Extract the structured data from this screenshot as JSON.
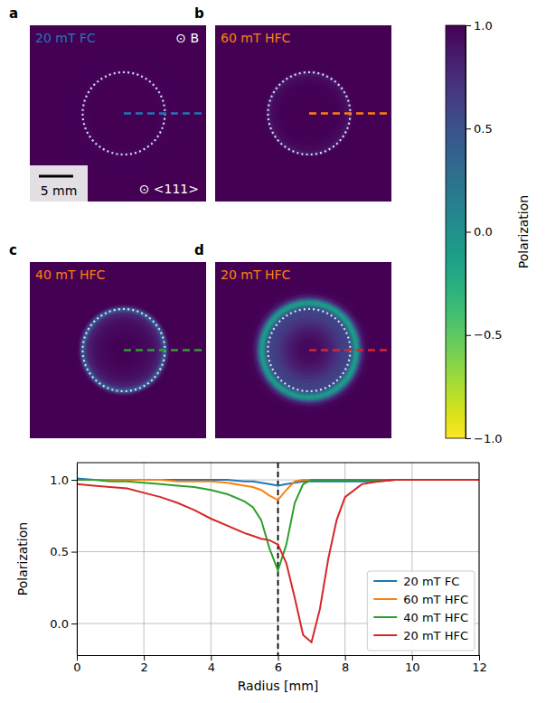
{
  "chart_data": [
    {
      "type": "radial_map",
      "panels": [
        {
          "label": "a",
          "title": "20 mT FC",
          "color": "#1f77b4"
        },
        {
          "label": "b",
          "title": "60 mT HFC",
          "color": "#ff7f0e"
        },
        {
          "label": "c",
          "title": "40 mT HFC",
          "color": "#ff7f0e"
        },
        {
          "label": "d",
          "title": "20 mT HFC",
          "color": "#ff7f0e"
        }
      ],
      "annotations": [
        "⊙ B",
        "⊙ <111>"
      ],
      "scale_bar": {
        "value": 5,
        "label": "5 mm"
      },
      "circle_radius": 6,
      "xlim": [
        -13.7,
        12
      ],
      "ylim": [
        -12.85,
        12.85
      ],
      "tick_labels": false,
      "colorbar": {
        "label": "Polarization",
        "range": [
          -1,
          1
        ],
        "ticks": [
          {
            "value": 1,
            "label": "1.0"
          },
          {
            "value": 0.5,
            "label": "0.5"
          },
          {
            "value": 0,
            "label": "0.0"
          },
          {
            "value": -0.5,
            "label": "−0.5"
          },
          {
            "value": -1,
            "label": "−1.0"
          }
        ]
      }
    },
    {
      "type": "line",
      "xlabel": "Radius [mm]",
      "ylabel": "Polarization",
      "x": [
        0,
        0.5,
        1,
        1.5,
        2,
        2.5,
        3,
        3.5,
        4,
        4.5,
        5,
        5.25,
        5.5,
        5.75,
        6,
        6.25,
        6.5,
        6.75,
        7,
        7.25,
        7.5,
        7.75,
        8,
        8.5,
        9,
        9.5,
        10,
        10.5,
        11,
        11.5,
        12
      ],
      "series": [
        {
          "name": "20 mT FC",
          "color": "#1f77b4",
          "values": [
            1.01,
            1.0,
            1.0,
            1.0,
            1.0,
            1.0,
            1.0,
            1.0,
            1.0,
            1.0,
            0.99,
            0.99,
            0.98,
            0.97,
            0.96,
            0.97,
            0.98,
            0.99,
            0.99,
            0.99,
            0.99,
            0.99,
            0.99,
            0.99,
            0.99,
            1.0,
            1.0,
            1.0,
            1.0,
            1.0,
            1.0
          ]
        },
        {
          "name": "60 mT HFC",
          "color": "#ff7f0e",
          "values": [
            1.0,
            1.0,
            1.0,
            1.0,
            1.0,
            1.0,
            0.99,
            0.99,
            0.99,
            0.98,
            0.96,
            0.95,
            0.93,
            0.89,
            0.86,
            0.93,
            0.99,
            1.0,
            1.0,
            1.0,
            1.0,
            1.0,
            1.0,
            1.0,
            1.0,
            1.0,
            1.0,
            1.0,
            1.0,
            1.0,
            1.0
          ]
        },
        {
          "name": "40 mT HFC",
          "color": "#2ca02c",
          "values": [
            1.0,
            1.0,
            0.99,
            0.99,
            0.98,
            0.97,
            0.96,
            0.95,
            0.93,
            0.9,
            0.85,
            0.81,
            0.72,
            0.52,
            0.37,
            0.55,
            0.84,
            0.97,
            1.0,
            1.0,
            1.0,
            1.0,
            1.0,
            1.0,
            1.0,
            1.0,
            1.0,
            1.0,
            1.0,
            1.0,
            1.0
          ]
        },
        {
          "name": "20 mT HFC",
          "color": "#d62728",
          "values": [
            0.97,
            0.96,
            0.95,
            0.94,
            0.91,
            0.88,
            0.84,
            0.79,
            0.73,
            0.68,
            0.63,
            0.61,
            0.59,
            0.58,
            0.55,
            0.42,
            0.18,
            -0.08,
            -0.13,
            0.1,
            0.45,
            0.72,
            0.88,
            0.97,
            0.99,
            1.0,
            1.0,
            1.0,
            1.0,
            1.0,
            1.0
          ]
        }
      ],
      "xlim": [
        0,
        12
      ],
      "ylim": [
        -0.22,
        1.12
      ],
      "xticks": [
        0,
        2,
        4,
        6,
        8,
        10,
        12
      ],
      "yticks": [
        {
          "value": 0,
          "label": "0.0"
        },
        {
          "value": 0.5,
          "label": "0.5"
        },
        {
          "value": 1,
          "label": "1.0"
        }
      ],
      "grid": true,
      "legend": "lower right",
      "reference_x": 6
    }
  ]
}
